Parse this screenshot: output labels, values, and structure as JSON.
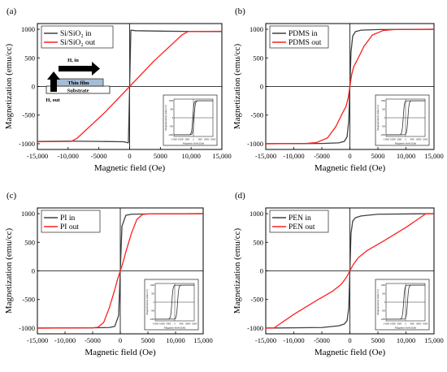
{
  "chart_data": [
    {
      "type": "line",
      "panel_label": "(a)",
      "xlabel": "Magnetic field (Oe)",
      "ylabel": "Magnetization (emu/cc)",
      "xlim": [
        -15000,
        15000
      ],
      "ylim": [
        -1100,
        1100
      ],
      "x_ticks": [
        -15000,
        -10000,
        -5000,
        0,
        5000,
        10000,
        15000
      ],
      "x_tick_labels": [
        "-15,000",
        "-10,000",
        "-5000",
        "0",
        "5000",
        "10,000",
        "15,000"
      ],
      "y_ticks": [
        -1000,
        -500,
        0,
        500,
        1000
      ],
      "y_tick_labels": [
        "-1000",
        "-500",
        "0",
        "500",
        "1000"
      ],
      "legend_position": "top-left",
      "series": [
        {
          "name": "Si/SiO₂ in",
          "color": "#404040",
          "x": [
            -15000,
            -10000,
            -5000,
            -1000,
            -200,
            0,
            200,
            1000,
            5000,
            10000,
            15000
          ],
          "y": [
            -960,
            -955,
            -960,
            -965,
            -985,
            0,
            985,
            975,
            968,
            962,
            960
          ]
        },
        {
          "name": "Si/SiO₂ out",
          "color": "#ff2020",
          "x": [
            -15000,
            -9500,
            -8500,
            -4000,
            0,
            4000,
            8500,
            9500,
            15000
          ],
          "y": [
            -965,
            -960,
            -900,
            -450,
            0,
            450,
            900,
            960,
            965
          ]
        }
      ],
      "annotation": {
        "in_label": "H, in",
        "out_label": "H, out",
        "film_label": "Thin film",
        "substrate_label": "Substrate"
      },
      "inset": {
        "xlabel": "Magnetic field (Oe)",
        "ylabel": "Magnetization (emu/cc)",
        "x_tick_labels": [
          "-15000",
          "-10000",
          "-5000",
          "0",
          "5000",
          "10000",
          "15000"
        ],
        "y_tick_labels": [
          "-1000",
          "-500",
          "0",
          "500",
          "1000"
        ],
        "coercivity": 500
      }
    },
    {
      "type": "line",
      "panel_label": "(b)",
      "xlabel": "Magnetic field (Oe)",
      "ylabel": "Magnetization (emu/cc)",
      "xlim": [
        -15000,
        15000
      ],
      "ylim": [
        -1100,
        1100
      ],
      "x_ticks": [
        -15000,
        -10000,
        -5000,
        0,
        5000,
        10000,
        15000
      ],
      "x_tick_labels": [
        "-15,000",
        "-10,000",
        "-5000",
        "0",
        "5000",
        "10,000",
        "15,000"
      ],
      "y_ticks": [
        -1000,
        -500,
        0,
        500,
        1000
      ],
      "y_tick_labels": [
        "-1000",
        "-500",
        "0",
        "500",
        "1000"
      ],
      "legend_position": "top-left",
      "series": [
        {
          "name": "PDMS in",
          "color": "#404040",
          "x": [
            -15000,
            -5000,
            -2000,
            -1000,
            -500,
            -200,
            0,
            200,
            500,
            1000,
            2000,
            5000,
            15000
          ],
          "y": [
            -1000,
            -995,
            -985,
            -960,
            -880,
            -600,
            0,
            600,
            880,
            960,
            985,
            995,
            1000
          ]
        },
        {
          "name": "PDMS out",
          "color": "#ff2020",
          "x": [
            -15000,
            -8000,
            -6000,
            -4000,
            -2500,
            -1500,
            -700,
            -300,
            0,
            300,
            700,
            1500,
            2500,
            4000,
            6000,
            8000,
            15000
          ],
          "y": [
            -1000,
            -995,
            -980,
            -900,
            -700,
            -500,
            -350,
            -200,
            0,
            200,
            350,
            500,
            700,
            900,
            980,
            995,
            1000
          ]
        }
      ],
      "inset": {
        "xlabel": "Magnetic field (Oe)",
        "ylabel": "Magnetization (emu/cc)",
        "x_tick_labels": [
          "-15000",
          "-10000",
          "-5000",
          "0",
          "5000",
          "10000",
          "15000"
        ],
        "y_tick_labels": [
          "-1000",
          "-500",
          "0",
          "500",
          "1000"
        ],
        "coercivity": 1800
      }
    },
    {
      "type": "line",
      "panel_label": "(c)",
      "xlabel": "Magnetic field (Oe)",
      "ylabel": "Magnetization (emu/cc)",
      "xlim": [
        -15000,
        15000
      ],
      "ylim": [
        -1100,
        1100
      ],
      "x_ticks": [
        -15000,
        -10000,
        -5000,
        0,
        5000,
        10000,
        15000
      ],
      "x_tick_labels": [
        "-15,000",
        "-10,000",
        "-5000",
        "0",
        "5000",
        "10,000",
        "15,000"
      ],
      "y_ticks": [
        -1000,
        -500,
        0,
        500,
        1000
      ],
      "y_tick_labels": [
        "-1000",
        "-500",
        "0",
        "500",
        "1000"
      ],
      "legend_position": "top-left",
      "series": [
        {
          "name": "PI in",
          "color": "#404040",
          "x": [
            -15000,
            -5000,
            -2000,
            -1000,
            -300,
            0,
            300,
            1000,
            2000,
            5000,
            15000
          ],
          "y": [
            -1000,
            -995,
            -990,
            -970,
            -780,
            0,
            780,
            970,
            990,
            995,
            1000
          ]
        },
        {
          "name": "PI out",
          "color": "#ff2020",
          "x": [
            -15000,
            -5000,
            -4000,
            -3000,
            -2000,
            -1000,
            -500,
            0,
            500,
            1000,
            2000,
            3000,
            4000,
            5000,
            15000
          ],
          "y": [
            -1000,
            -995,
            -985,
            -900,
            -650,
            -330,
            -150,
            0,
            150,
            330,
            650,
            900,
            985,
            995,
            1000
          ]
        }
      ],
      "inset": {
        "xlabel": "Magnetic field (Oe)",
        "ylabel": "Magnetization (emu/cc)",
        "x_tick_labels": [
          "-15000",
          "-10000",
          "-5000",
          "0",
          "5000",
          "10000",
          "15000"
        ],
        "y_tick_labels": [
          "-1000",
          "-500",
          "0",
          "500",
          "1000"
        ],
        "coercivity": 2200
      }
    },
    {
      "type": "line",
      "panel_label": "(d)",
      "xlabel": "Magnetic field (Oe)",
      "ylabel": "Magnetization (emu/cc)",
      "xlim": [
        -15000,
        15000
      ],
      "ylim": [
        -1100,
        1100
      ],
      "x_ticks": [
        -15000,
        -10000,
        -5000,
        0,
        5000,
        10000,
        15000
      ],
      "x_tick_labels": [
        "-15,000",
        "-10,000",
        "-5000",
        "0",
        "5000",
        "10,000",
        "15,000"
      ],
      "y_ticks": [
        -1000,
        -500,
        0,
        500,
        1000
      ],
      "y_tick_labels": [
        "-1000",
        "-500",
        "0",
        "500",
        "1000"
      ],
      "legend_position": "top-left",
      "series": [
        {
          "name": "PEN in",
          "color": "#404040",
          "x": [
            -15000,
            -5000,
            -2000,
            -1000,
            -500,
            -200,
            0,
            200,
            500,
            1000,
            2000,
            5000,
            15000
          ],
          "y": [
            -1000,
            -990,
            -960,
            -930,
            -870,
            -650,
            0,
            650,
            870,
            930,
            960,
            990,
            1000
          ]
        },
        {
          "name": "PEN out",
          "color": "#ff2020",
          "x": [
            -15000,
            -13500,
            -10000,
            -6000,
            -3000,
            -1500,
            -600,
            0,
            600,
            1500,
            3000,
            6000,
            10000,
            13500,
            15000
          ],
          "y": [
            -1000,
            -995,
            -760,
            -520,
            -350,
            -230,
            -110,
            0,
            110,
            230,
            350,
            520,
            760,
            995,
            1000
          ]
        }
      ],
      "inset": {
        "xlabel": "Magnetic field (Oe)",
        "ylabel": "Magnetization (emu/cc)",
        "x_tick_labels": [
          "-15000",
          "-10000",
          "-5000",
          "0",
          "5000",
          "10000",
          "15000"
        ],
        "y_tick_labels": [
          "-1000",
          "-500",
          "0",
          "500",
          "1000"
        ],
        "coercivity": 1500
      }
    }
  ]
}
